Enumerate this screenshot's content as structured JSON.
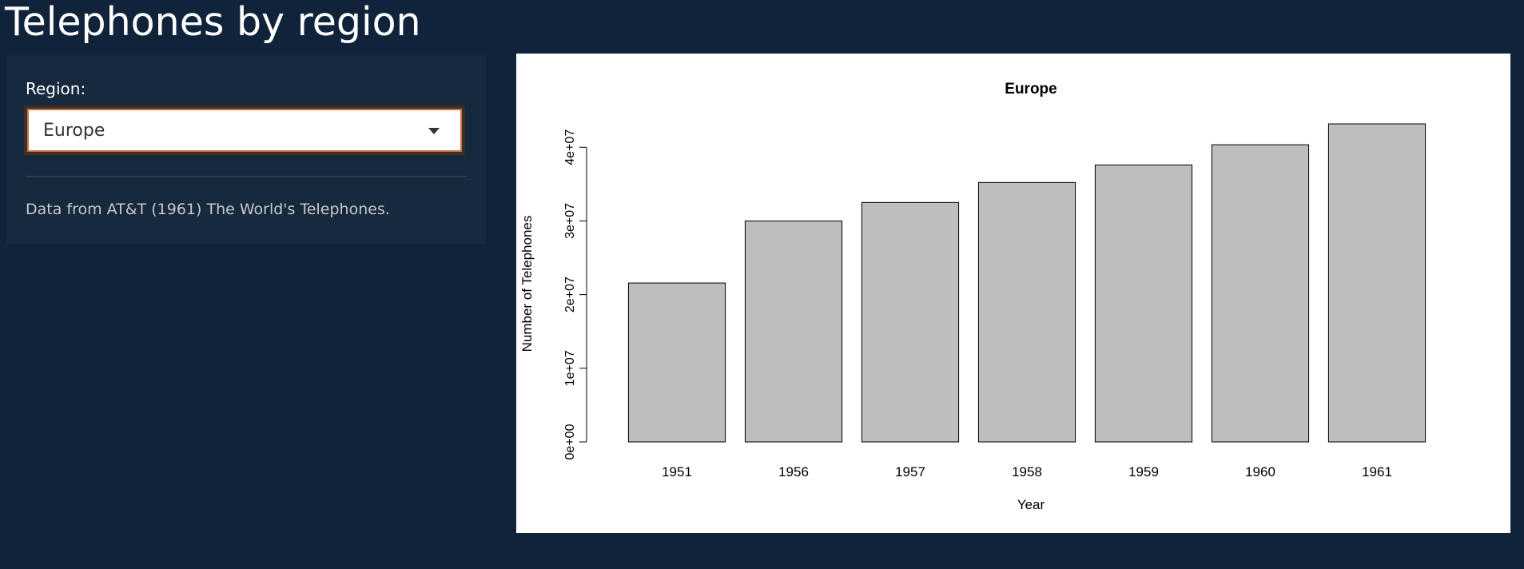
{
  "page": {
    "title": "Telephones by region"
  },
  "sidebar": {
    "region_label": "Region:",
    "region_selected": "Europe",
    "note": "Data from AT&T (1961) The World's Telephones."
  },
  "colors": {
    "background": "#10233a",
    "sidebar": "#16293d",
    "bar_fill": "#bebebe",
    "select_border": "#c9743f"
  },
  "icons": {
    "select_caret": "caret-down-icon"
  },
  "chart_data": {
    "type": "bar",
    "title": "Europe",
    "xlabel": "Year",
    "ylabel": "Number of Telephones",
    "categories": [
      "1951",
      "1956",
      "1957",
      "1958",
      "1959",
      "1960",
      "1961"
    ],
    "values": [
      21574000,
      29990000,
      32510000,
      35218000,
      37598000,
      40341000,
      43173000
    ],
    "ylim": [
      0,
      43173000
    ],
    "yticks": [
      0,
      10000000,
      20000000,
      30000000,
      40000000
    ],
    "ytick_labels": [
      "0e+00",
      "1e+07",
      "2e+07",
      "3e+07",
      "4e+07"
    ],
    "grid": false,
    "legend": "none"
  }
}
